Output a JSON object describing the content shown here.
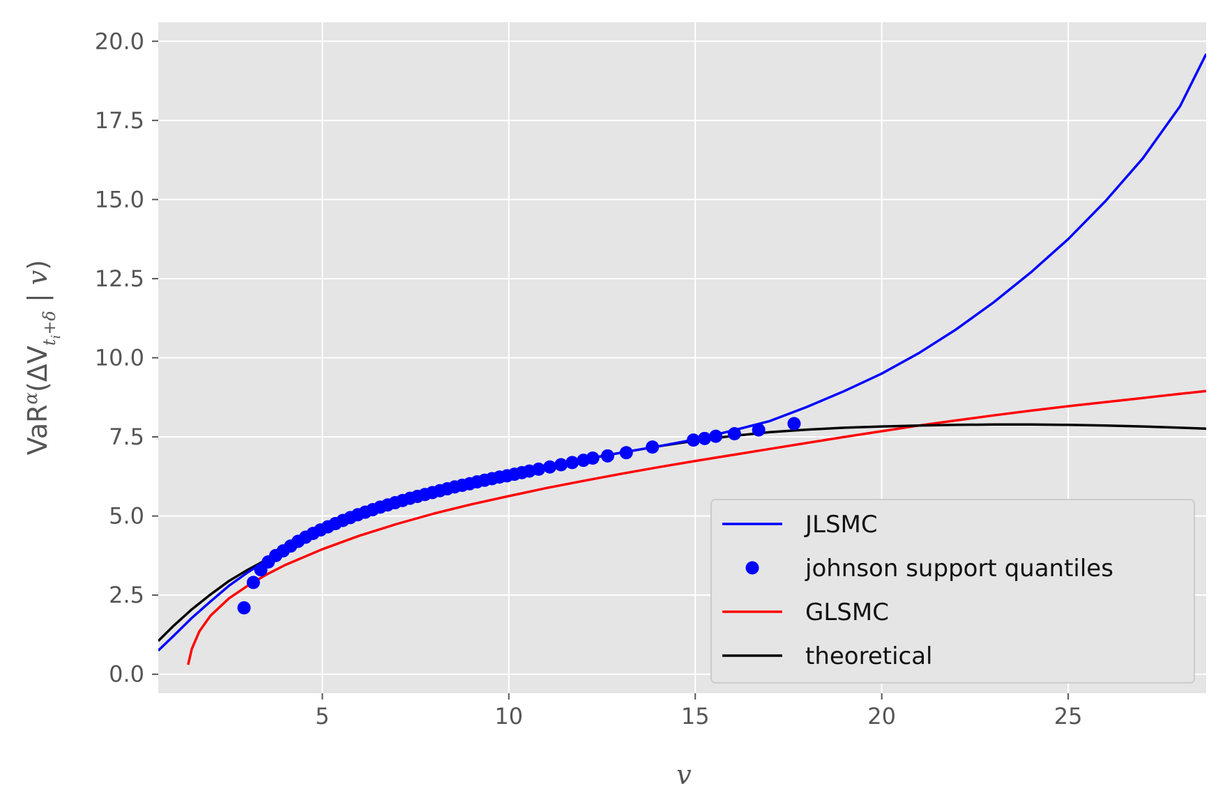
{
  "chart_data": {
    "type": "line",
    "xlabel": "v",
    "ylabel": "VaR^α(ΔV_{t_i+δ} | v)",
    "xlim": [
      0.6,
      28.7
    ],
    "ylim": [
      -0.6,
      20.6
    ],
    "xticks": [
      5,
      10,
      15,
      20,
      25
    ],
    "xtick_labels": [
      "5",
      "10",
      "15",
      "20",
      "25"
    ],
    "yticks": [
      0.0,
      2.5,
      5.0,
      7.5,
      10.0,
      12.5,
      15.0,
      17.5,
      20.0
    ],
    "ytick_labels": [
      "0.0",
      "2.5",
      "5.0",
      "7.5",
      "10.0",
      "12.5",
      "15.0",
      "17.5",
      "20.0"
    ],
    "grid": true,
    "background": "#e5e5e5",
    "legend_position": "bottom-right",
    "series": [
      {
        "name": "JLSMC",
        "kind": "line",
        "color": "#0000ff",
        "x": [
          0.6,
          1.0,
          1.5,
          2.0,
          2.5,
          3.0,
          3.5,
          4.0,
          5.0,
          6.0,
          7.0,
          8.0,
          9.0,
          10.0,
          11.0,
          12.0,
          13.0,
          14.0,
          15.0,
          16.0,
          17.0,
          18.0,
          19.0,
          20.0,
          21.0,
          22.0,
          23.0,
          24.0,
          25.0,
          26.0,
          27.0,
          28.0,
          28.7
        ],
        "y": [
          0.75,
          1.2,
          1.78,
          2.3,
          2.8,
          3.22,
          3.6,
          3.98,
          4.55,
          4.98,
          5.33,
          5.66,
          5.97,
          6.26,
          6.52,
          6.78,
          7.0,
          7.2,
          7.42,
          7.7,
          8.0,
          8.45,
          8.95,
          9.5,
          10.15,
          10.9,
          11.75,
          12.7,
          13.75,
          14.95,
          16.3,
          17.95,
          19.6
        ]
      },
      {
        "name": "johnson support quantiles",
        "kind": "scatter",
        "color": "#0000ff",
        "x": [
          2.9,
          3.15,
          3.35,
          3.55,
          3.75,
          3.95,
          4.15,
          4.35,
          4.55,
          4.75,
          4.95,
          5.15,
          5.35,
          5.55,
          5.75,
          5.95,
          6.15,
          6.35,
          6.55,
          6.75,
          6.95,
          7.15,
          7.35,
          7.55,
          7.75,
          7.95,
          8.15,
          8.35,
          8.55,
          8.75,
          8.95,
          9.15,
          9.35,
          9.55,
          9.75,
          9.95,
          10.15,
          10.35,
          10.55,
          10.8,
          11.1,
          11.4,
          11.7,
          12.0,
          12.25,
          12.65,
          13.15,
          13.85,
          14.95,
          15.25,
          15.55,
          16.05,
          16.7,
          17.65
        ],
        "y": [
          2.1,
          2.9,
          3.3,
          3.55,
          3.75,
          3.9,
          4.05,
          4.2,
          4.33,
          4.45,
          4.56,
          4.66,
          4.76,
          4.86,
          4.95,
          5.04,
          5.12,
          5.2,
          5.28,
          5.35,
          5.42,
          5.49,
          5.56,
          5.62,
          5.68,
          5.74,
          5.8,
          5.86,
          5.92,
          5.97,
          6.02,
          6.08,
          6.13,
          6.18,
          6.23,
          6.27,
          6.32,
          6.37,
          6.42,
          6.48,
          6.55,
          6.62,
          6.69,
          6.76,
          6.83,
          6.9,
          7.0,
          7.18,
          7.4,
          7.45,
          7.52,
          7.6,
          7.72,
          7.92
        ]
      },
      {
        "name": "GLSMC",
        "kind": "line",
        "color": "#ff0000",
        "x": [
          1.4,
          1.5,
          1.7,
          2.0,
          2.5,
          3.0,
          3.5,
          4.0,
          5.0,
          6.0,
          7.0,
          8.0,
          9.0,
          10.0,
          11.0,
          12.0,
          13.0,
          14.0,
          15.0,
          16.0,
          17.0,
          18.0,
          19.0,
          20.0,
          21.0,
          22.0,
          23.0,
          24.0,
          25.0,
          26.0,
          27.0,
          28.0,
          28.7
        ],
        "y": [
          0.3,
          0.8,
          1.35,
          1.85,
          2.4,
          2.8,
          3.15,
          3.45,
          3.95,
          4.38,
          4.75,
          5.08,
          5.37,
          5.63,
          5.88,
          6.11,
          6.33,
          6.54,
          6.74,
          6.93,
          7.12,
          7.31,
          7.5,
          7.68,
          7.86,
          8.02,
          8.18,
          8.33,
          8.47,
          8.6,
          8.73,
          8.86,
          8.95
        ]
      },
      {
        "name": "theoretical",
        "kind": "line",
        "color": "#000000",
        "x": [
          0.6,
          1.0,
          1.5,
          2.0,
          2.5,
          3.0,
          3.5,
          4.0,
          5.0,
          6.0,
          7.0,
          8.0,
          9.0,
          10.0,
          11.0,
          12.0,
          13.0,
          14.0,
          15.0,
          16.0,
          17.0,
          18.0,
          19.0,
          20.0,
          21.0,
          22.0,
          23.0,
          24.0,
          25.0,
          26.0,
          27.0,
          28.0,
          28.7
        ],
        "y": [
          1.05,
          1.52,
          2.05,
          2.52,
          2.95,
          3.3,
          3.62,
          3.92,
          4.5,
          4.95,
          5.33,
          5.67,
          5.98,
          6.27,
          6.53,
          6.79,
          7.0,
          7.2,
          7.38,
          7.53,
          7.65,
          7.73,
          7.79,
          7.83,
          7.86,
          7.88,
          7.89,
          7.89,
          7.88,
          7.86,
          7.83,
          7.79,
          7.76
        ]
      }
    ]
  }
}
